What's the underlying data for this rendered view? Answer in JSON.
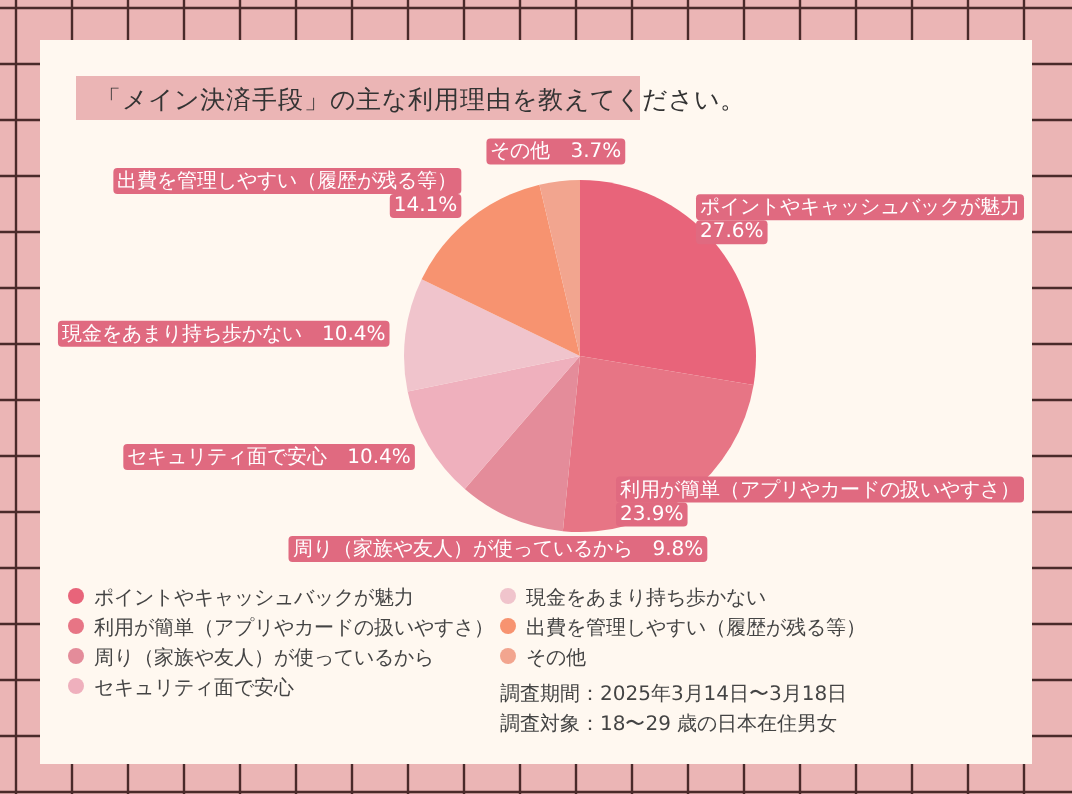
{
  "chart_data": {
    "type": "pie",
    "title": "「メイン決済手段」の主な利用理由を教えてください。",
    "categories": [
      "ポイントやキャッシュバックが魅力",
      "利用が簡単（アプリやカードの扱いやすさ）",
      "周り（家族や友人）が使っているから",
      "セキュリティ面で安心",
      "現金をあまり持ち歩かない",
      "出費を管理しやすい（履歴が残る等）",
      "その他"
    ],
    "values": [
      27.6,
      23.9,
      9.8,
      10.4,
      10.4,
      14.1,
      3.7
    ],
    "value_labels": [
      "27.6%",
      "23.9%",
      "9.8%",
      "10.4%",
      "10.4%",
      "14.1%",
      "3.7%"
    ],
    "colors": [
      "#e8647a",
      "#e77585",
      "#e48c9a",
      "#efb0bd",
      "#f0c4cc",
      "#f79370",
      "#f2a58f"
    ],
    "legend": "bottom left",
    "annotations": [
      "調査期間：2025年3月14日〜3月18日",
      "調査対象：18〜29 歳の日本在住男女"
    ]
  }
}
